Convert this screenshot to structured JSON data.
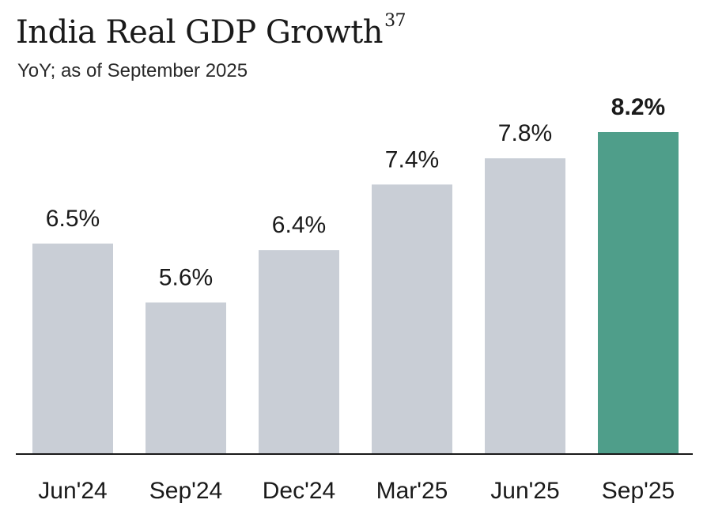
{
  "chart_data": {
    "type": "bar",
    "title": "India Real GDP Growth",
    "title_footnote": "37",
    "subtitle": "YoY; as of September 2025",
    "categories": [
      "Jun'24",
      "Sep'24",
      "Dec'24",
      "Mar'25",
      "Jun'25",
      "Sep'25"
    ],
    "values": [
      6.5,
      5.6,
      6.4,
      7.4,
      7.8,
      8.2
    ],
    "value_labels": [
      "6.5%",
      "5.6%",
      "6.4%",
      "7.4%",
      "7.8%",
      "8.2%"
    ],
    "highlight_index": 5,
    "xlabel": "",
    "ylabel": "",
    "ylim": [
      3.3,
      8.2
    ],
    "grid": false,
    "legend": "none",
    "colors": {
      "bar": "#c9ced6",
      "highlight": "#4f9e8a",
      "axis": "#1a1a1a"
    }
  }
}
